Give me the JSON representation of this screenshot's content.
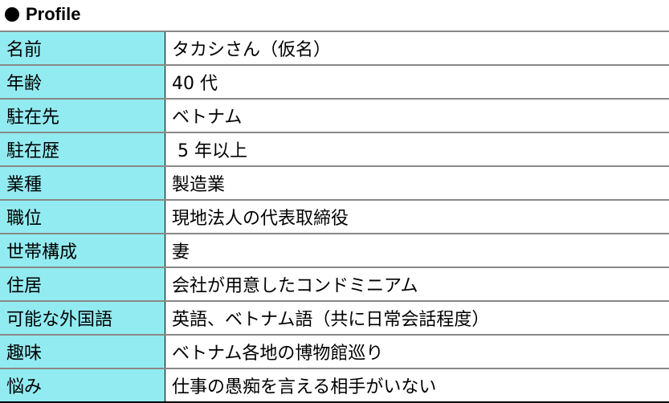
{
  "title": "Profile",
  "accent_color": "#92ebf0",
  "rows": [
    {
      "label": "名前",
      "value": "タカシさん（仮名）"
    },
    {
      "label": "年齢",
      "value": "40 代"
    },
    {
      "label": "駐在先",
      "value": "ベトナム"
    },
    {
      "label": "駐在歴",
      "value": " 5 年以上"
    },
    {
      "label": "業種",
      "value": "製造業"
    },
    {
      "label": "職位",
      "value": "現地法人の代表取締役"
    },
    {
      "label": "世帯構成",
      "value": "妻"
    },
    {
      "label": "住居",
      "value": "会社が用意したコンドミニアム"
    },
    {
      "label": "可能な外国語",
      "value": "英語、ベトナム語（共に日常会話程度）"
    },
    {
      "label": "趣味",
      "value": "ベトナム各地の博物館巡り"
    },
    {
      "label": "悩み",
      "value": "仕事の愚痴を言える相手がいない"
    }
  ]
}
